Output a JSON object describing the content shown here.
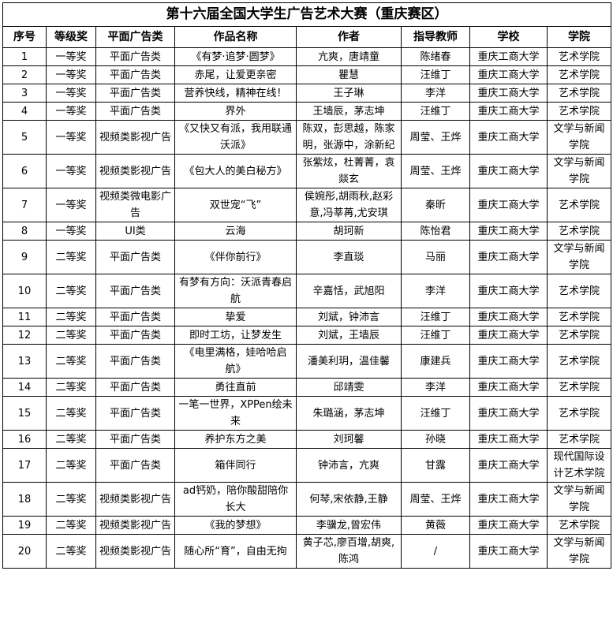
{
  "title": "第十六届全国大学生广告艺术大赛（重庆赛区）",
  "columns": [
    "序号",
    "等级奖",
    "平面广告类",
    "作品名称",
    "作者",
    "指导教师",
    "学校",
    "学院"
  ],
  "rows": [
    [
      "1",
      "一等奖",
      "平面广告类",
      "《有梦·追梦·圆梦》",
      "亢爽，唐靖童",
      "陈绪春",
      "重庆工商大学",
      "艺术学院"
    ],
    [
      "2",
      "一等奖",
      "平面广告类",
      "赤尾，让爱更亲密",
      "瞿慧",
      "汪维丁",
      "重庆工商大学",
      "艺术学院"
    ],
    [
      "3",
      "一等奖",
      "平面广告类",
      "营养快线，精神在线！",
      "王子琳",
      "李洋",
      "重庆工商大学",
      "艺术学院"
    ],
    [
      "4",
      "一等奖",
      "平面广告类",
      "界外",
      "王墙辰，茅志坤",
      "汪维丁",
      "重庆工商大学",
      "艺术学院"
    ],
    [
      "5",
      "一等奖",
      "视频类影视广告",
      "《又快又有派，我用联通沃派》",
      "陈双，彭思越，陈家明，张源中，涂新纪",
      "周莹、王烨",
      "重庆工商大学",
      "文学与新闻学院"
    ],
    [
      "6",
      "一等奖",
      "视频类影视广告",
      "《包大人的美白秘方》",
      "张紫炫，杜菁菁，袁燚玄",
      "周莹、王烨",
      "重庆工商大学",
      "文学与新闻学院"
    ],
    [
      "7",
      "一等奖",
      "视频类微电影广告",
      "双世宠“飞”",
      "侯婉彤,胡雨秋,赵彩意,冯莘苒,尤安琪",
      "秦昕",
      "重庆工商大学",
      "艺术学院"
    ],
    [
      "8",
      "一等奖",
      "UI类",
      "云海",
      "胡珂新",
      "陈怡君",
      "重庆工商大学",
      "艺术学院"
    ],
    [
      "9",
      "二等奖",
      "平面广告类",
      "《伴你前行》",
      "李直琰",
      "马丽",
      "重庆工商大学",
      "文学与新闻学院"
    ],
    [
      "10",
      "二等奖",
      "平面广告类",
      "有梦有方向：沃派青春启航",
      "辛嘉恬，武旭阳",
      "李洋",
      "重庆工商大学",
      "艺术学院"
    ],
    [
      "11",
      "二等奖",
      "平面广告类",
      "挚爱",
      "刘斌，钟沛言",
      "汪维丁",
      "重庆工商大学",
      "艺术学院"
    ],
    [
      "12",
      "二等奖",
      "平面广告类",
      "即时工坊，让梦发生",
      "刘斌，王墙辰",
      "汪维丁",
      "重庆工商大学",
      "艺术学院"
    ],
    [
      "13",
      "二等奖",
      "平面广告类",
      "《电里满格，娃哈哈启航》",
      "潘美利玥，温佳馨",
      "康建兵",
      "重庆工商大学",
      "艺术学院"
    ],
    [
      "14",
      "二等奖",
      "平面广告类",
      "勇往直前",
      "邱靖雯",
      "李洋",
      "重庆工商大学",
      "艺术学院"
    ],
    [
      "15",
      "二等奖",
      "平面广告类",
      "一笔一世界，XPPen绘未来",
      "朱璐涵，茅志坤",
      "汪维丁",
      "重庆工商大学",
      "艺术学院"
    ],
    [
      "16",
      "二等奖",
      "平面广告类",
      "养护东方之美",
      "刘珂馨",
      "孙晓",
      "重庆工商大学",
      "艺术学院"
    ],
    [
      "17",
      "二等奖",
      "平面广告类",
      "箱伴同行",
      "钟沛言，亢爽",
      "甘露",
      "重庆工商大学",
      "现代国际设计艺术学院"
    ],
    [
      "18",
      "二等奖",
      "视频类影视广告",
      "ad钙奶，陪你酸甜陪你长大",
      "何琴,宋依静,王静",
      "周莹、王烨",
      "重庆工商大学",
      "文学与新闻学院"
    ],
    [
      "19",
      "二等奖",
      "视频类影视广告",
      "《我的梦想》",
      "李骥龙,曾宏伟",
      "黄薇",
      "重庆工商大学",
      "艺术学院"
    ],
    [
      "20",
      "二等奖",
      "视频类影视广告",
      "随心所“育”，自由无拘",
      "黄子芯,廖百增,胡爽,陈鸿",
      "/",
      "重庆工商大学",
      "文学与新闻学院"
    ]
  ]
}
